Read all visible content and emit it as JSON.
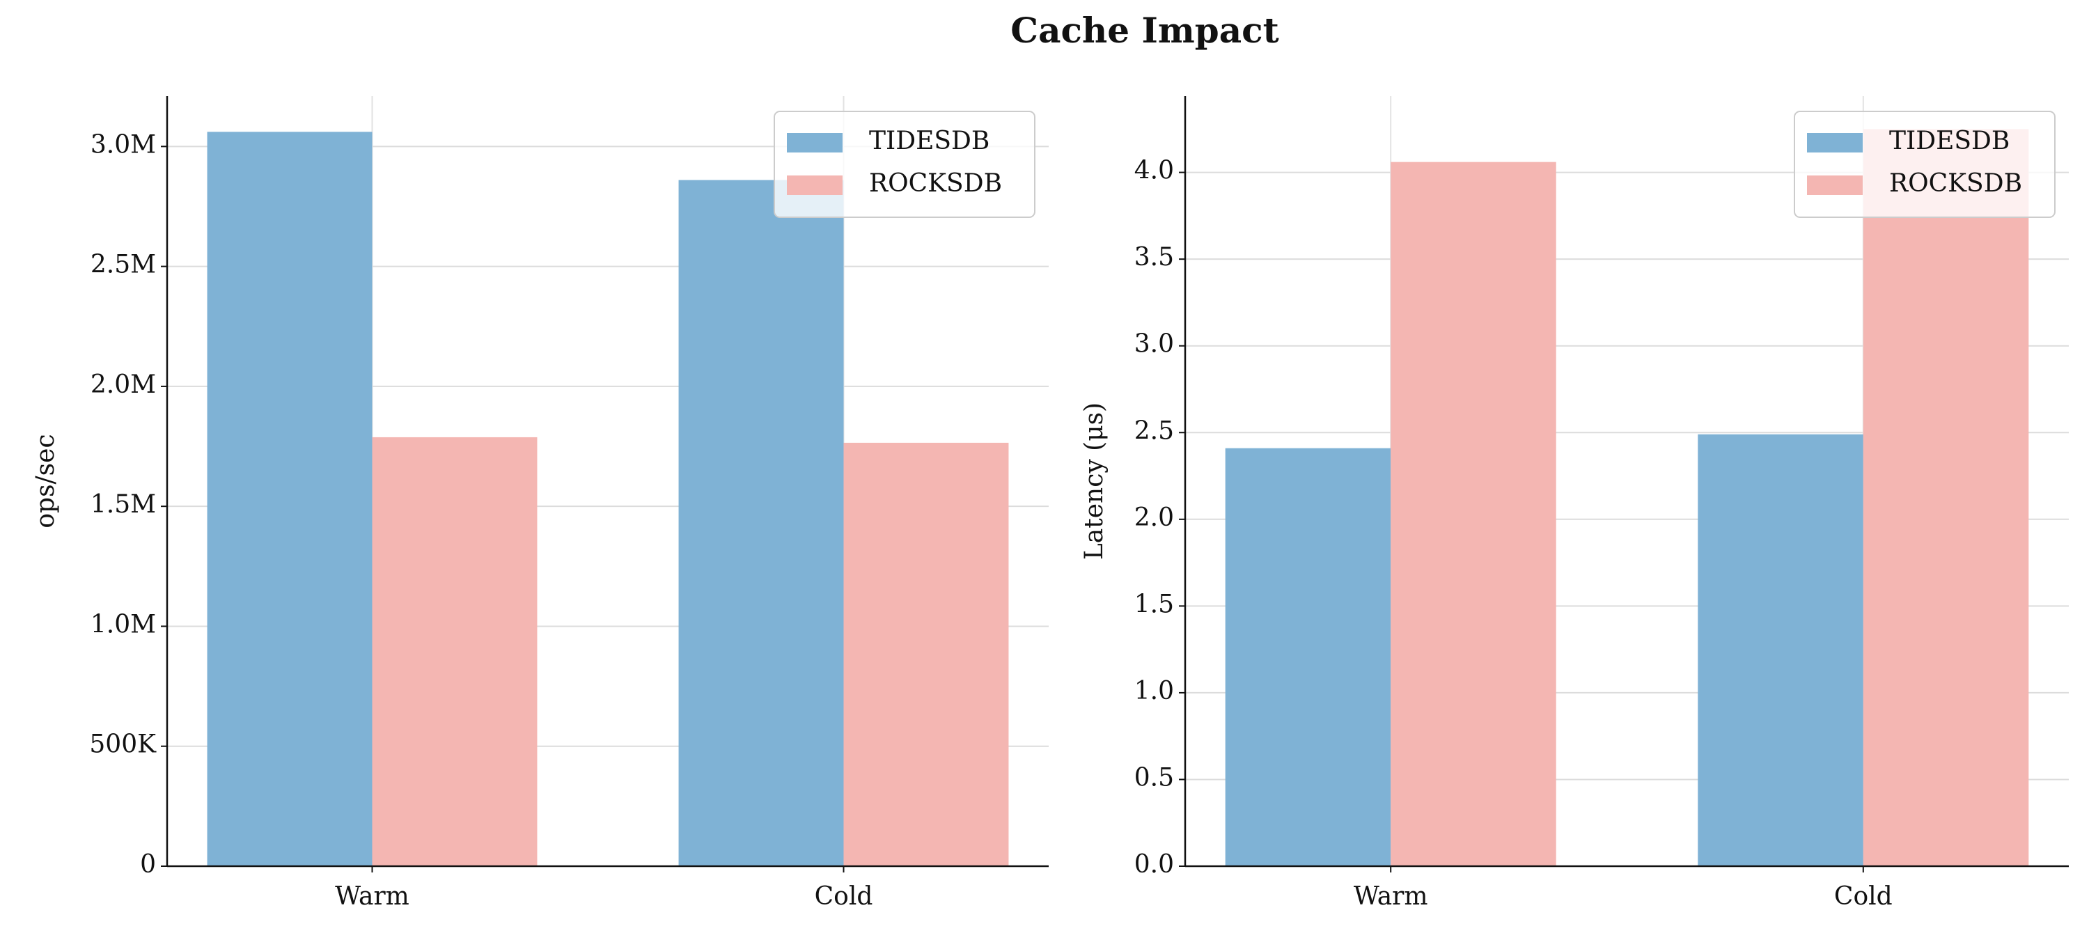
{
  "title": "Cache Impact",
  "chart_data": [
    {
      "type": "bar",
      "ylabel": "ops/sec",
      "categories": [
        "Warm",
        "Cold"
      ],
      "series": [
        {
          "name": "TIDESDB",
          "color": "#7fb2d5",
          "values": [
            3061000,
            2860000
          ]
        },
        {
          "name": "ROCKSDB",
          "color": "#f4b6b2",
          "values": [
            1788000,
            1765000
          ]
        }
      ],
      "ylim": [
        0,
        3210000
      ],
      "yticks": [
        0,
        {
          "value": 500000,
          "label": "500K"
        },
        {
          "value": 1000000,
          "label": "1.0M"
        },
        {
          "value": 1500000,
          "label": "1.5M"
        },
        {
          "value": 2000000,
          "label": "2.0M"
        },
        {
          "value": 2500000,
          "label": "2.5M"
        },
        {
          "value": 3000000,
          "label": "3.0M"
        }
      ],
      "grid": true,
      "legend": "upper right"
    },
    {
      "type": "bar",
      "ylabel": "Latency (μs)",
      "categories": [
        "Warm",
        "Cold"
      ],
      "series": [
        {
          "name": "TIDESDB",
          "color": "#7fb2d5",
          "values": [
            2.41,
            2.49
          ]
        },
        {
          "name": "ROCKSDB",
          "color": "#f4b6b2",
          "values": [
            4.06,
            4.25
          ]
        }
      ],
      "ylim": [
        0,
        4.44
      ],
      "yticks": [
        {
          "value": 0,
          "label": "0.0"
        },
        0.5,
        {
          "value": 1,
          "label": "1.0"
        },
        1.5,
        {
          "value": 2,
          "label": "2.0"
        },
        2.5,
        {
          "value": 3,
          "label": "3.0"
        },
        3.5,
        {
          "value": 4,
          "label": "4.0"
        }
      ],
      "grid": true,
      "legend": "upper right"
    }
  ]
}
